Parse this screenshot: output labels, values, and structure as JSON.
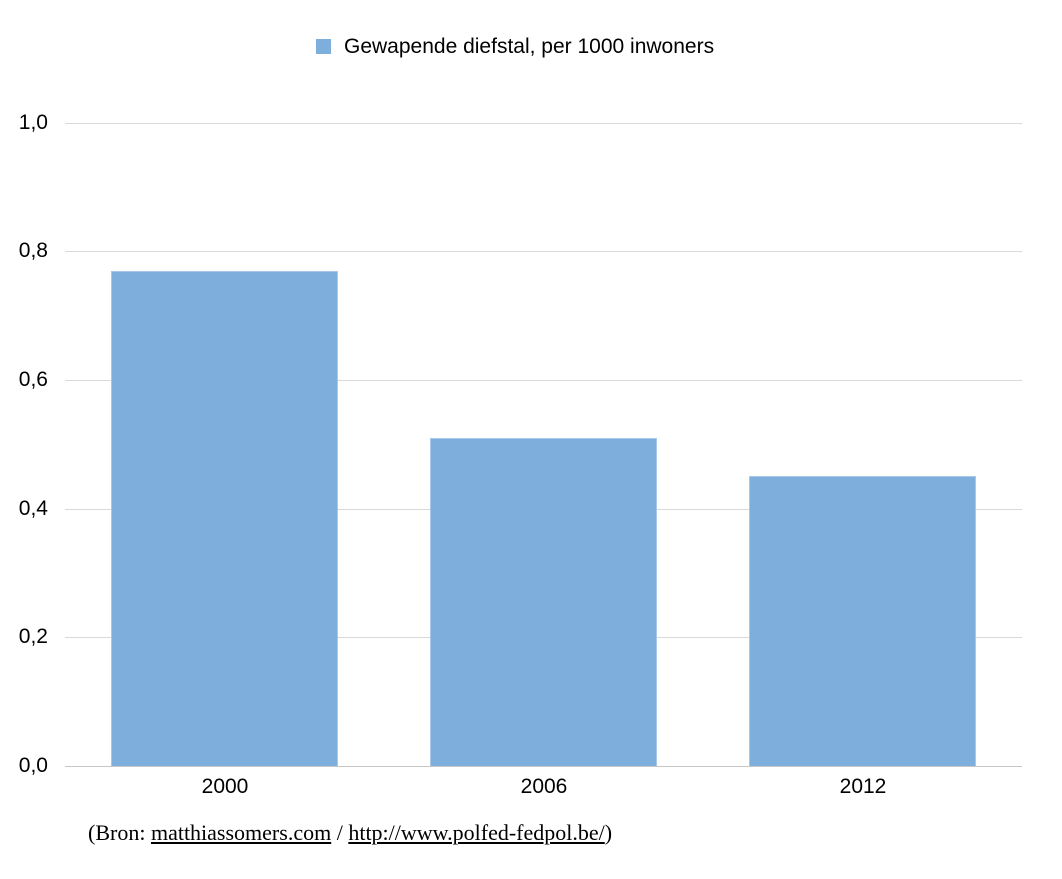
{
  "chart_data": {
    "type": "bar",
    "legend": "Gewapende diefstal, per 1000 inwoners",
    "categories": [
      "2000",
      "2006",
      "2012"
    ],
    "values": [
      0.77,
      0.51,
      0.45
    ],
    "ylim": [
      0,
      1.0
    ],
    "yticks": [
      {
        "label": "0,0",
        "value": 0.0
      },
      {
        "label": "0,2",
        "value": 0.2
      },
      {
        "label": "0,4",
        "value": 0.4
      },
      {
        "label": "0,6",
        "value": 0.6
      },
      {
        "label": "0,8",
        "value": 0.8
      },
      {
        "label": "1,0",
        "value": 1.0
      }
    ],
    "grid": true,
    "legend_position": "top-center",
    "bar_color": "#7EAFDC",
    "bar_border_color": "#A9C7E8",
    "gridline_color": "#D9D9D9",
    "axis_color": "#C6C6C6"
  },
  "source": {
    "prefix": "(Bron: ",
    "link1": "matthiassomers.com",
    "separator": " / ",
    "link2": "http://www.polfed-fedpol.be/",
    "suffix": ")"
  }
}
